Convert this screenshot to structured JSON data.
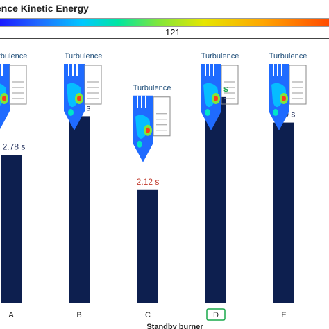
{
  "chart_data": {
    "type": "bar",
    "title": "ence Kinetic Energy",
    "colorbar_value": "121",
    "categories": [
      "A",
      "B",
      "C",
      "D",
      "E"
    ],
    "values": [
      2.78,
      3.51,
      2.12,
      3.87,
      3.39
    ],
    "value_labels": [
      "2.78 s",
      "3.51 s",
      "2.12 s",
      "3.87 s",
      "3.39 s"
    ],
    "value_label_colors": [
      "#1f2d5a",
      "#1f2d5a",
      "#c0392b",
      "#18a84a",
      "#1f2d5a"
    ],
    "highlighted_category": "D",
    "bar_color": "#0d1f4f",
    "image_label": "Turbulence",
    "xlabel": "Standby burner",
    "ylim": [
      0,
      4.6
    ]
  }
}
